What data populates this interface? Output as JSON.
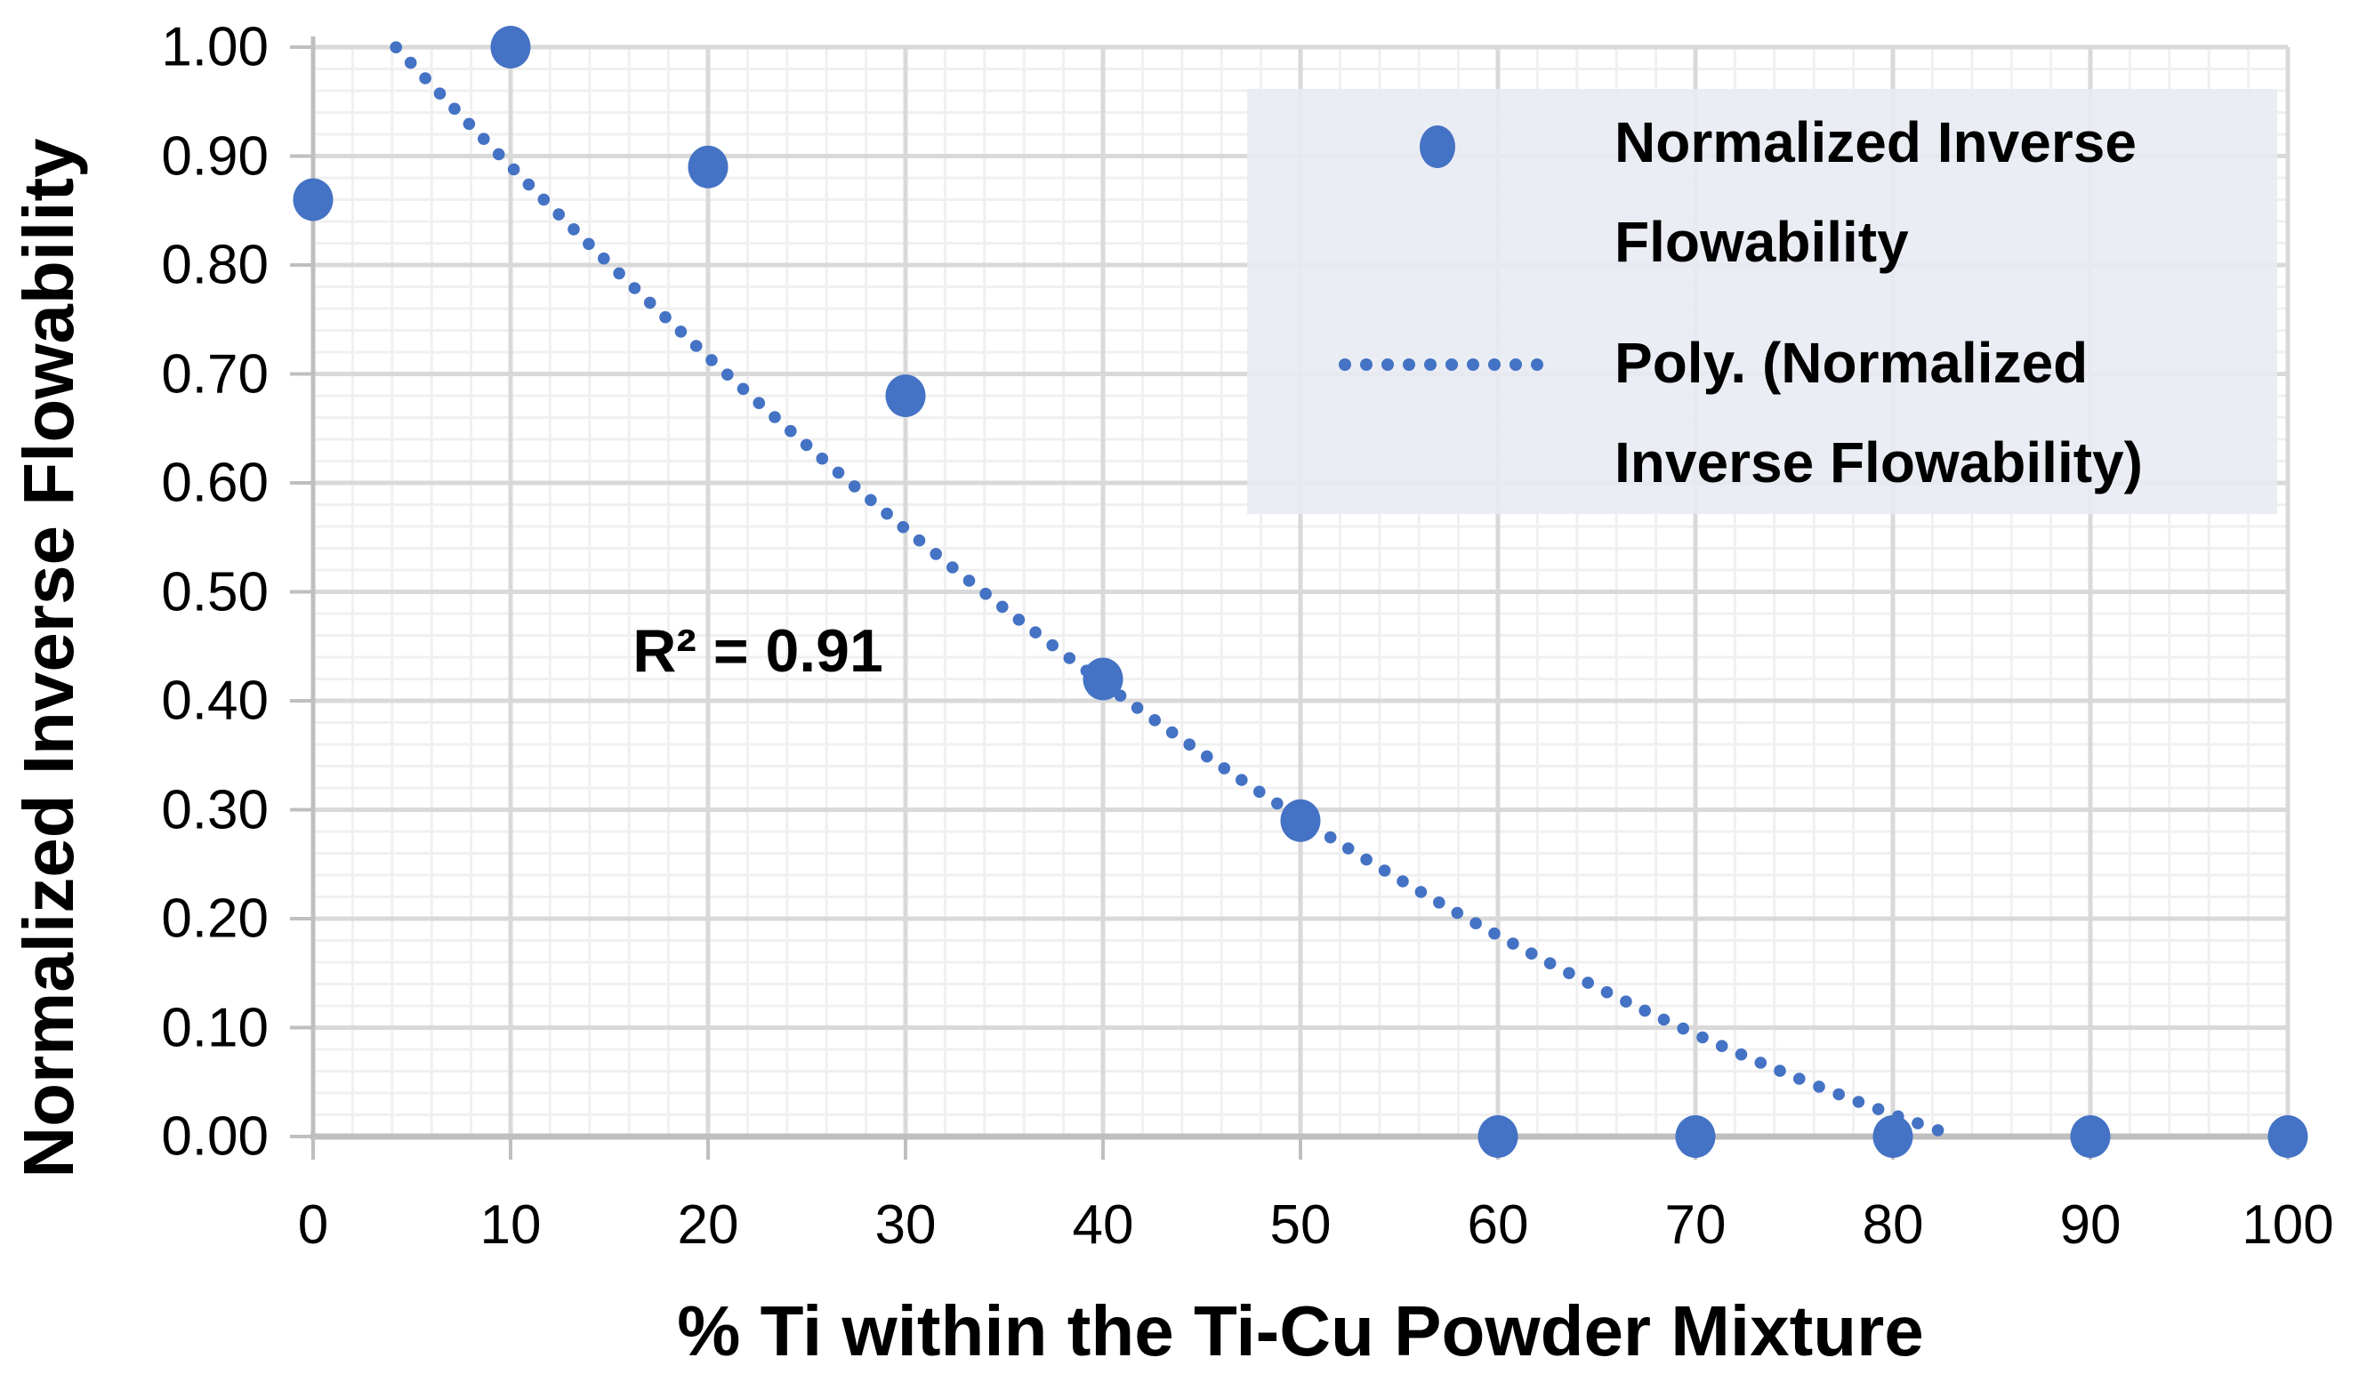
{
  "chart_data": {
    "type": "scatter",
    "title": "",
    "xlabel": "% Ti within the Ti-Cu Powder Mixture",
    "ylabel": "Normalized Inverse Flowability",
    "xlim": [
      0,
      100
    ],
    "ylim": [
      0.0,
      1.0
    ],
    "x_major_step": 10,
    "y_major_step": 0.1,
    "x_minor_step": 2,
    "y_minor_step": 0.02,
    "grid": "major-and-minor",
    "x_ticks": [
      "0",
      "10",
      "20",
      "30",
      "40",
      "50",
      "60",
      "70",
      "80",
      "90",
      "100"
    ],
    "y_ticks": [
      "1.00",
      "0.90",
      "0.80",
      "0.70",
      "0.60",
      "0.50",
      "0.40",
      "0.30",
      "0.20",
      "0.10",
      "0.00"
    ],
    "series": [
      {
        "name": "Normalized Inverse Flowability",
        "marker": "circle",
        "points": [
          {
            "x": 0,
            "y": 0.86
          },
          {
            "x": 10,
            "y": 1.0
          },
          {
            "x": 20,
            "y": 0.89
          },
          {
            "x": 30,
            "y": 0.68
          },
          {
            "x": 40,
            "y": 0.42
          },
          {
            "x": 50,
            "y": 0.29
          },
          {
            "x": 60,
            "y": 0.0
          },
          {
            "x": 70,
            "y": 0.0
          },
          {
            "x": 80,
            "y": 0.0
          },
          {
            "x": 90,
            "y": 0.0
          },
          {
            "x": 100,
            "y": 0.0
          }
        ]
      }
    ],
    "trendline": {
      "label": "Poly. (Normalized Inverse Flowability)",
      "type": "polynomial",
      "order": 2,
      "coefficients": {
        "x2": 8.436e-05,
        "x1": -0.020027,
        "x0": 1.08249
      },
      "x_range": [
        4.2,
        83.3
      ],
      "style": "dotted",
      "r_squared": 0.91,
      "r_squared_text": "R² = 0.91"
    },
    "legend": {
      "position": "top-right",
      "entries": [
        {
          "label": "Normalized Inverse Flowability",
          "key": "point-marker"
        },
        {
          "label": "Poly. (Normalized Inverse Flowability)",
          "key": "dotted-line"
        }
      ]
    },
    "colors": {
      "series_blue": "#4472C4",
      "major_grid": "#D9D9D9",
      "minor_grid": "#F0F0F0",
      "axis_line": "#BFBFBF",
      "legend_background": "#E8EBF2",
      "text": "#000000",
      "plot_background": "#FFFFFF"
    }
  }
}
